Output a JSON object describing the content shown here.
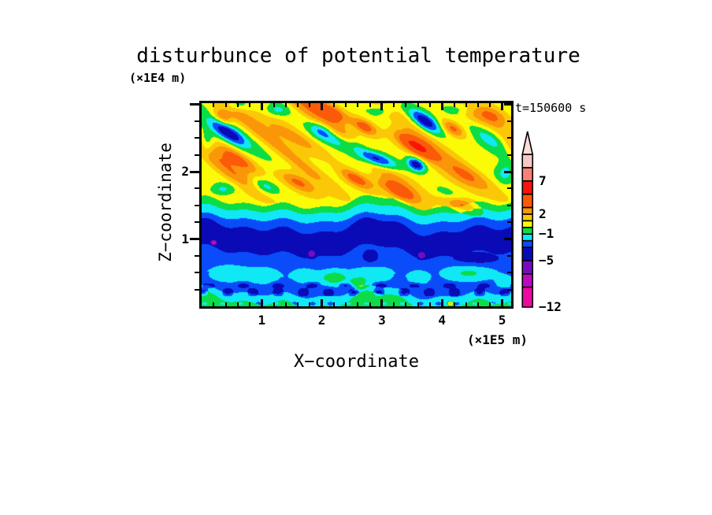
{
  "title": "disturbunce of potential temperature",
  "z_axis_unit": "(×1E4 m)",
  "time_label": "t=150600 s",
  "x_axis_unit": "(×1E5 m)",
  "x_axis_label": "X−coordinate",
  "z_axis_label": "Z−coordinate",
  "chart_data": {
    "type": "heatmap",
    "subtype": "filled-contour",
    "title": "disturbunce of potential temperature",
    "xlabel": "X−coordinate (×1E5 m)",
    "ylabel": "Z−coordinate (×1E4 m)",
    "time_annotation": "t=150600 s",
    "x_range": [
      0,
      5.15
    ],
    "z_range": [
      0,
      3.02
    ],
    "grid": false,
    "x_ticks": {
      "majors": [
        1,
        2,
        3,
        4,
        5
      ],
      "labels": [
        "1",
        "2",
        "3",
        "4",
        "5"
      ],
      "minor_step": 0.2
    },
    "z_ticks": {
      "majors": [
        1,
        2
      ],
      "labels": [
        "1",
        "2"
      ],
      "minor_step": 0.25
    },
    "levels": [
      -12,
      -9,
      -7,
      -5,
      -3,
      -2,
      -1,
      0,
      1,
      2,
      3,
      5,
      7,
      9,
      11
    ],
    "palette": [
      "#ee08a2",
      "#bc0abc",
      "#7a0ac0",
      "#0a0ab6",
      "#0a4cfa",
      "#10e8f6",
      "#0cdc46",
      "#fbfb08",
      "#fbc808",
      "#fb9608",
      "#fb5a08",
      "#f81408",
      "#f88078",
      "#f8c8c4"
    ],
    "colorbar": {
      "legend_position": "right",
      "arrow_fill": "#fbdcd8",
      "labels": [
        {
          "value": 7,
          "text": "7"
        },
        {
          "value": 2,
          "text": "2"
        },
        {
          "value": -1,
          "text": "−1"
        },
        {
          "value": -5,
          "text": "−5"
        },
        {
          "value": -12,
          "text": "−12"
        }
      ]
    },
    "field": {
      "wobble": [
        {
          "a": 0.055,
          "k": 2.4,
          "p": 1.0
        },
        {
          "a": 0.04,
          "k": 4.1,
          "p": 2.2
        },
        {
          "a": 0.022,
          "k": 9.7,
          "p": 0.8
        }
      ],
      "layers": [
        {
          "top": 0.07,
          "v": -0.5,
          "w": 1.6
        },
        {
          "top": 0.2,
          "v": -1.6,
          "w": 1.2
        },
        {
          "top": 0.42,
          "v": -2.6,
          "w": 1.0
        },
        {
          "top": 0.8,
          "v": -2.5,
          "w": 1.3
        },
        {
          "top": 1.17,
          "v": -4.2,
          "w": 1.5
        },
        {
          "top": 1.3,
          "v": -2.6,
          "w": 1.0
        },
        {
          "top": 1.43,
          "v": -1.6,
          "w": 1.0
        },
        {
          "top": 1.53,
          "v": -0.6,
          "w": 1.2
        },
        {
          "top": 99,
          "v": 0.75,
          "w": 0
        }
      ],
      "wave": {
        "z0": 1.47,
        "ramp": 0.5,
        "pos_gain": 1.35,
        "neg_gain": 0.8,
        "mod": {
          "a": 0.2,
          "k": 1.05,
          "p": 0.4
        },
        "components": [
          {
            "a": 1,
            "kx": 4.8,
            "kz": 6.8,
            "p": -2.0
          },
          {
            "a": 0.45,
            "kx": 9.6,
            "kz": 13.6,
            "p": 1.1
          },
          {
            "a": 0.3,
            "kx": 2.2,
            "kz": 3.4,
            "p": 0.5
          }
        ]
      },
      "speckles": [
        {
          "z": 0.21,
          "dz": 0.05,
          "kx": 15,
          "p": 1.3,
          "amp": -2.0
        },
        {
          "z": 0.31,
          "dz": 0.04,
          "kx": 11,
          "p": 0.2,
          "amp": -1.3
        },
        {
          "z": 0.04,
          "dz": 0.03,
          "kx": 21,
          "p": 0.5,
          "amp": -0.8
        }
      ],
      "blobs": [
        [
          0.43,
          2.58,
          0.36,
          0.11,
          -30,
          -4.2
        ],
        [
          3.72,
          2.75,
          0.3,
          0.11,
          -30,
          -4.4
        ],
        [
          2.88,
          2.2,
          0.38,
          0.1,
          -20,
          -5.5
        ],
        [
          3.57,
          2.11,
          0.16,
          0.09,
          -25,
          -4.6
        ],
        [
          2.0,
          2.61,
          0.22,
          0.12,
          -20,
          -2.8
        ],
        [
          2.57,
          2.41,
          0.2,
          0.1,
          -20,
          -1.8
        ],
        [
          2.26,
          2.47,
          0.22,
          0.1,
          -20,
          -1.9
        ],
        [
          4.82,
          2.51,
          0.35,
          0.15,
          -30,
          -2.4
        ],
        [
          4.3,
          2.95,
          0.25,
          0.1,
          0,
          -1.7
        ],
        [
          0.55,
          2.99,
          0.2,
          0.09,
          0,
          -1.6
        ],
        [
          1.26,
          2.92,
          0.18,
          0.09,
          0,
          -1.6
        ],
        [
          0.08,
          2.4,
          0.12,
          0.18,
          0,
          -1.9
        ],
        [
          5.05,
          1.98,
          0.15,
          0.15,
          0,
          -1.8
        ],
        [
          4.1,
          1.67,
          0.25,
          0.09,
          -20,
          -1.7
        ],
        [
          1.05,
          1.78,
          0.24,
          0.1,
          -20,
          -2.2
        ],
        [
          0.35,
          1.74,
          0.2,
          0.09,
          0,
          -1.7
        ],
        [
          3.05,
          2.93,
          0.2,
          0.09,
          0,
          -1.6
        ],
        [
          0.2,
          0.95,
          0.035,
          0.025,
          0,
          -6.5
        ],
        [
          1.5,
          2.53,
          0.7,
          0.13,
          -28,
          2.2
        ],
        [
          0.6,
          2.19,
          0.42,
          0.11,
          -30,
          3.3
        ],
        [
          1.59,
          1.85,
          0.36,
          0.11,
          -25,
          3.2
        ],
        [
          3.57,
          2.38,
          0.4,
          0.12,
          -28,
          5.3
        ],
        [
          2.71,
          2.67,
          0.24,
          0.1,
          -25,
          3.3
        ],
        [
          2.24,
          2.84,
          0.22,
          0.11,
          -20,
          2.8
        ],
        [
          0.34,
          2.82,
          0.18,
          0.1,
          -30,
          2.7
        ],
        [
          4.84,
          2.84,
          0.3,
          0.12,
          -25,
          2.5
        ],
        [
          4.18,
          2.64,
          0.22,
          0.1,
          -25,
          2.9
        ],
        [
          4.31,
          1.94,
          0.45,
          0.14,
          -25,
          2.2
        ],
        [
          2.57,
          1.89,
          0.3,
          0.1,
          -25,
          3.2
        ],
        [
          3.27,
          1.72,
          0.38,
          0.11,
          -25,
          3.4
        ],
        [
          4.31,
          1.52,
          0.33,
          0.1,
          -20,
          2.6
        ],
        [
          2.02,
          2.98,
          0.22,
          0.09,
          -20,
          2.4
        ],
        [
          4.14,
          0.04,
          0.05,
          0.035,
          0,
          3.2
        ],
        [
          0.45,
          0.48,
          0.38,
          0.14,
          0,
          1.3
        ],
        [
          1.05,
          0.45,
          0.28,
          0.13,
          0,
          1.3
        ],
        [
          1.7,
          0.45,
          0.22,
          0.12,
          0,
          1.3
        ],
        [
          2.2,
          0.42,
          0.24,
          0.12,
          0,
          2.2
        ],
        [
          2.85,
          0.47,
          0.36,
          0.13,
          0,
          1.5
        ],
        [
          3.6,
          0.42,
          0.18,
          0.11,
          0,
          1.4
        ],
        [
          4.45,
          0.5,
          0.45,
          0.14,
          0,
          1.7
        ],
        [
          5.05,
          0.35,
          0.15,
          0.1,
          0,
          1.3
        ],
        [
          2.6,
          0.34,
          0.15,
          0.08,
          0,
          2.1
        ],
        [
          1.83,
          0.78,
          0.12,
          0.1,
          0,
          -1.0
        ],
        [
          2.81,
          0.74,
          0.15,
          0.12,
          0,
          -1.1
        ],
        [
          3.66,
          0.76,
          0.12,
          0.09,
          0,
          -1.0
        ],
        [
          4.55,
          0.7,
          0.45,
          0.12,
          0,
          -1.2
        ]
      ]
    }
  }
}
